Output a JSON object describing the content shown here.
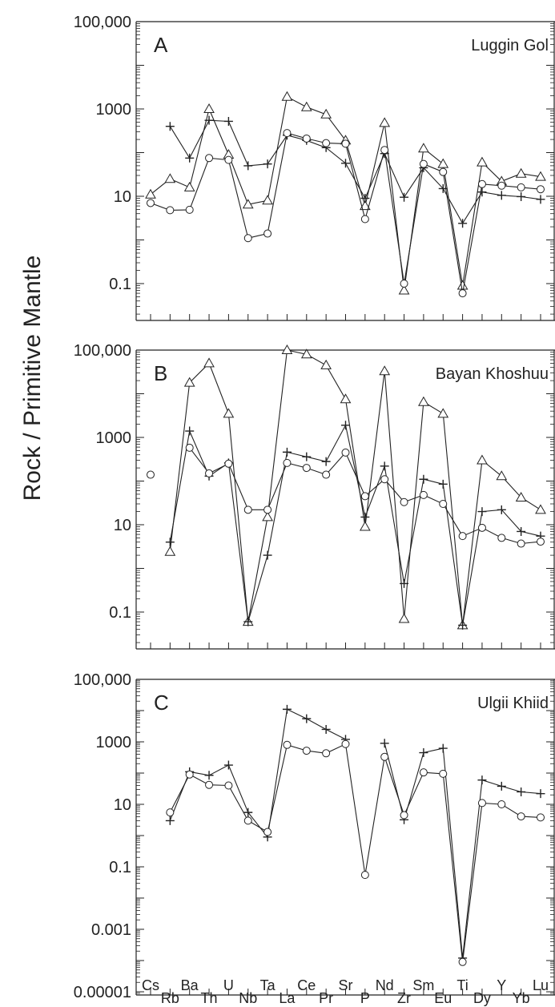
{
  "chart_data": {
    "type": "line",
    "ylabel": "Rock / Primitive Mantle",
    "yscale": "log",
    "elements": [
      "Cs",
      "Rb",
      "Ba",
      "Th",
      "U",
      "Nb",
      "Ta",
      "La",
      "Ce",
      "Pr",
      "Sr",
      "P",
      "Nd",
      "Zr",
      "Sm",
      "Eu",
      "Ti",
      "Dy",
      "Y",
      "Yb",
      "Lu"
    ],
    "panels": [
      {
        "letter": "A",
        "name": "Luggin Gol",
        "ylim": [
          0.01,
          100000
        ],
        "ytick_values": [
          0.1,
          10,
          1000,
          100000
        ],
        "ytick_labels": [
          "0.1",
          "10",
          "1000",
          "100,000"
        ],
        "series": [
          {
            "marker": "triangle",
            "values": [
              11,
              25,
              16,
              1000,
              90,
              6.5,
              8,
              1900,
              1100,
              750,
              190,
              6,
              480,
              0.07,
              125,
              55,
              0.09,
              60,
              22,
              33,
              28
            ]
          },
          {
            "marker": "plus",
            "values": [
              null,
              400,
              75,
              550,
              520,
              50,
              55,
              250,
              190,
              130,
              57,
              9,
              95,
              9.5,
              45,
              15,
              2.4,
              12.5,
              10.5,
              9.8,
              8.5
            ]
          },
          {
            "marker": "circle",
            "values": [
              7,
              4.8,
              4.9,
              75,
              68,
              1.1,
              1.4,
              280,
              210,
              165,
              160,
              3,
              115,
              0.1,
              55,
              36,
              0.06,
              19,
              17.5,
              16,
              14.5
            ]
          }
        ]
      },
      {
        "letter": "B",
        "name": "Bayan Khoshuu",
        "ylim": [
          0.01,
          100000
        ],
        "ytick_values": [
          0.1,
          10,
          1000,
          100000
        ],
        "ytick_labels": [
          "0.1",
          "10",
          "1000",
          "100,000"
        ],
        "series": [
          {
            "marker": "triangle",
            "values": [
              null,
              2.4,
              18000,
              50000,
              3500,
              0.06,
              15,
              100000,
              80000,
              45000,
              7500,
              9,
              33000,
              0.07,
              6500,
              3500,
              0.05,
              300,
              130,
              42,
              22
            ]
          },
          {
            "marker": "plus",
            "values": [
              null,
              4,
              1400,
              130,
              260,
              0.06,
              2,
              460,
              360,
              280,
              1900,
              15,
              220,
              0.45,
              110,
              85,
              0.05,
              20,
              22,
              7,
              5.5
            ]
          },
          {
            "marker": "circle",
            "values": [
              140,
              null,
              580,
              150,
              250,
              22,
              22,
              260,
              200,
              140,
              450,
              45,
              110,
              33,
              48,
              30,
              5.5,
              8.5,
              5,
              3.7,
              4.1
            ]
          }
        ]
      },
      {
        "letter": "C",
        "name": "Ulgii Khiid",
        "ylim": [
          3e-06,
          100000
        ],
        "ytick_values": [
          1e-05,
          0.001,
          0.1,
          10,
          1000,
          100000
        ],
        "ytick_labels": [
          "0.00001",
          "0.001",
          "0.1",
          "10",
          "1000",
          "100,000"
        ],
        "series": [
          {
            "marker": "plus",
            "values": [
              null,
              3,
              110,
              85,
              180,
              5.5,
              0.9,
              11000,
              5500,
              2500,
              1200,
              null,
              900,
              3.2,
              450,
              620,
              0.00012,
              60,
              38,
              25,
              22
            ]
          },
          {
            "marker": "circle",
            "values": [
              null,
              5.5,
              90,
              42,
              40,
              3,
              1.3,
              800,
              520,
              430,
              850,
              0.055,
              330,
              4.5,
              105,
              95,
              9e-05,
              11,
              10,
              4.1,
              3.8
            ]
          }
        ]
      }
    ]
  }
}
